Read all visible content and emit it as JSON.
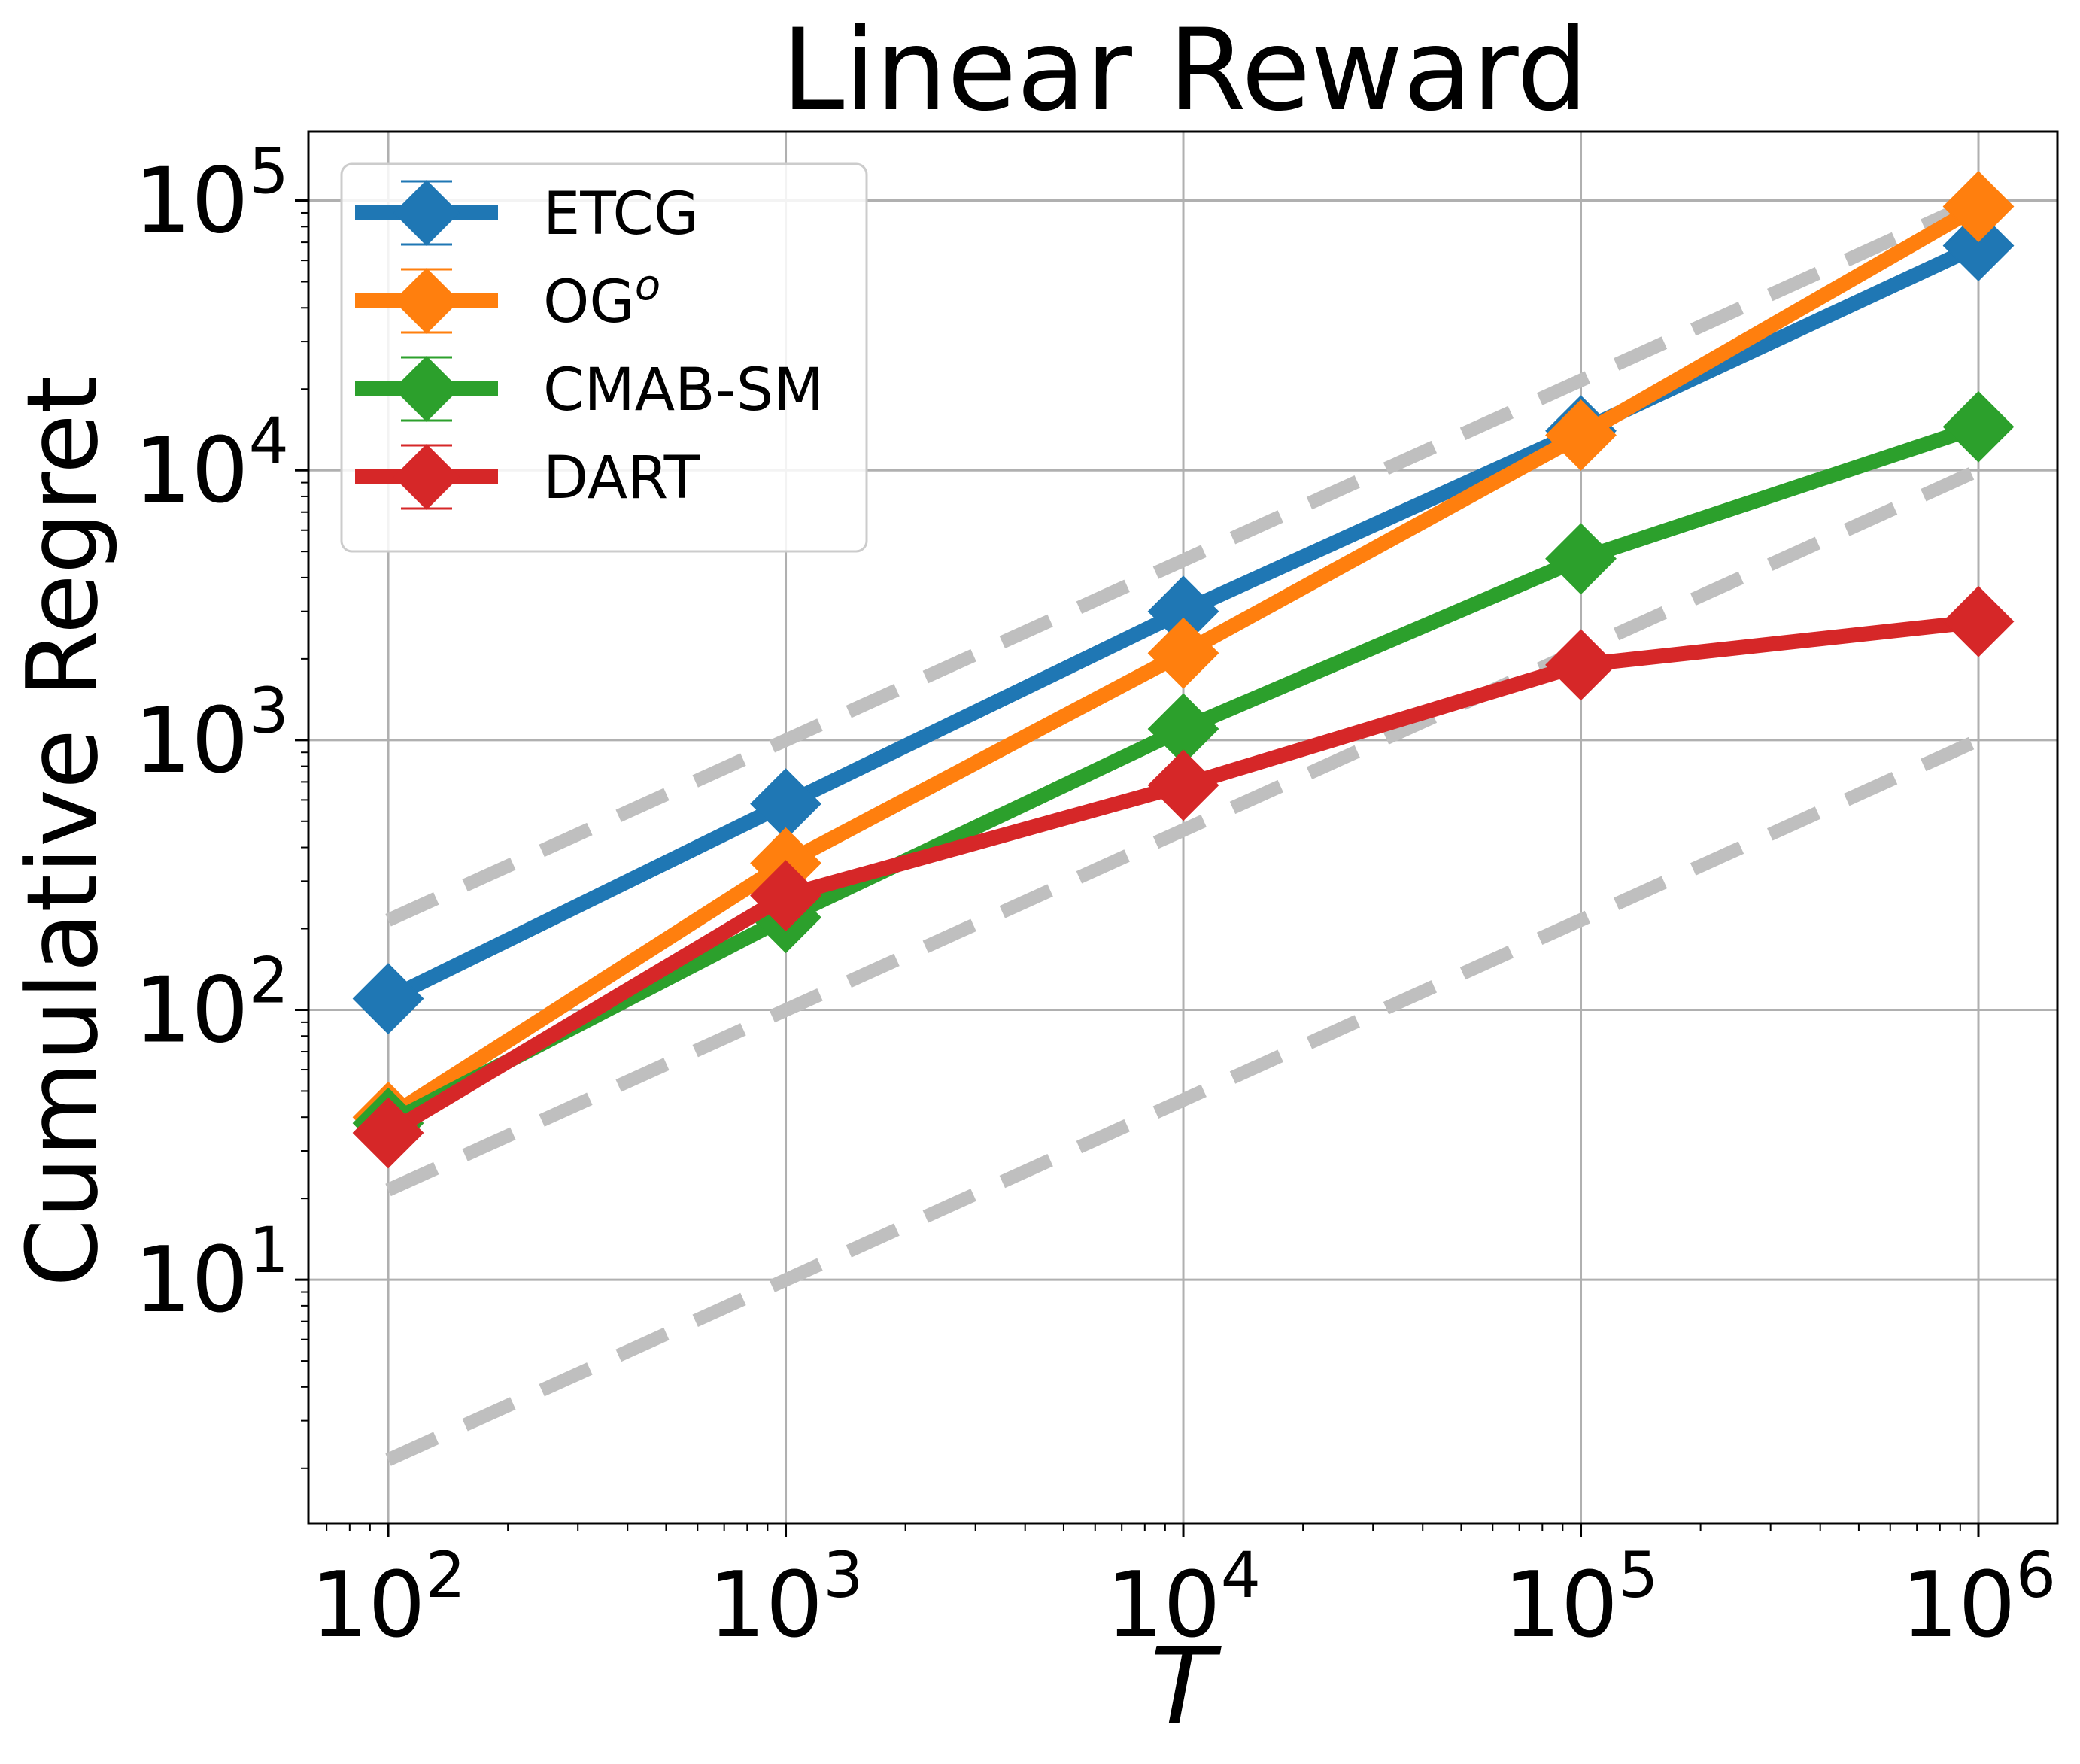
{
  "chart_data": {
    "type": "line",
    "title": "Linear Reward",
    "xlabel": "T",
    "ylabel": "Cumulative Regret",
    "xscale": "log",
    "yscale": "log",
    "xlim": [
      63,
      1580000
    ],
    "ylim": [
      1.25,
      180000
    ],
    "grid": true,
    "legend_position": "top-left",
    "x_ticks": [
      {
        "base": "10",
        "exp": "2",
        "value": 100
      },
      {
        "base": "10",
        "exp": "3",
        "value": 1000
      },
      {
        "base": "10",
        "exp": "4",
        "value": 10000
      },
      {
        "base": "10",
        "exp": "5",
        "value": 100000
      },
      {
        "base": "10",
        "exp": "6",
        "value": 1000000
      }
    ],
    "y_ticks": [
      {
        "base": "10",
        "exp": "1",
        "value": 10
      },
      {
        "base": "10",
        "exp": "2",
        "value": 100
      },
      {
        "base": "10",
        "exp": "3",
        "value": 1000
      },
      {
        "base": "10",
        "exp": "4",
        "value": 10000
      },
      {
        "base": "10",
        "exp": "5",
        "value": 100000
      }
    ],
    "x": [
      100,
      1000,
      10000,
      100000,
      1000000
    ],
    "series": [
      {
        "name": "ETCG",
        "legend_base": "ETCG",
        "legend_sup": "",
        "color": "#1f77b4",
        "values": [
          110,
          580,
          3000,
          14000,
          68000
        ]
      },
      {
        "name": "OGo",
        "legend_base": "OG",
        "legend_sup": "o",
        "color": "#ff7f0e",
        "values": [
          40,
          350,
          2100,
          13500,
          95000
        ]
      },
      {
        "name": "CMAB-SM",
        "legend_base": "CMAB-SM",
        "legend_sup": "",
        "color": "#2ca02c",
        "values": [
          38,
          220,
          1100,
          4700,
          14500
        ]
      },
      {
        "name": "DART",
        "legend_base": "DART",
        "legend_sup": "",
        "color": "#d62728",
        "values": [
          35,
          265,
          680,
          1900,
          2750
        ]
      }
    ],
    "reference_lines": [
      {
        "color": "#bfbfbf",
        "x": [
          100,
          1000000
        ],
        "y": [
          2.15,
          1000
        ]
      },
      {
        "color": "#bfbfbf",
        "x": [
          100,
          1000000
        ],
        "y": [
          21.5,
          10000
        ]
      },
      {
        "color": "#bfbfbf",
        "x": [
          100,
          1000000
        ],
        "y": [
          215,
          100000
        ]
      }
    ]
  }
}
